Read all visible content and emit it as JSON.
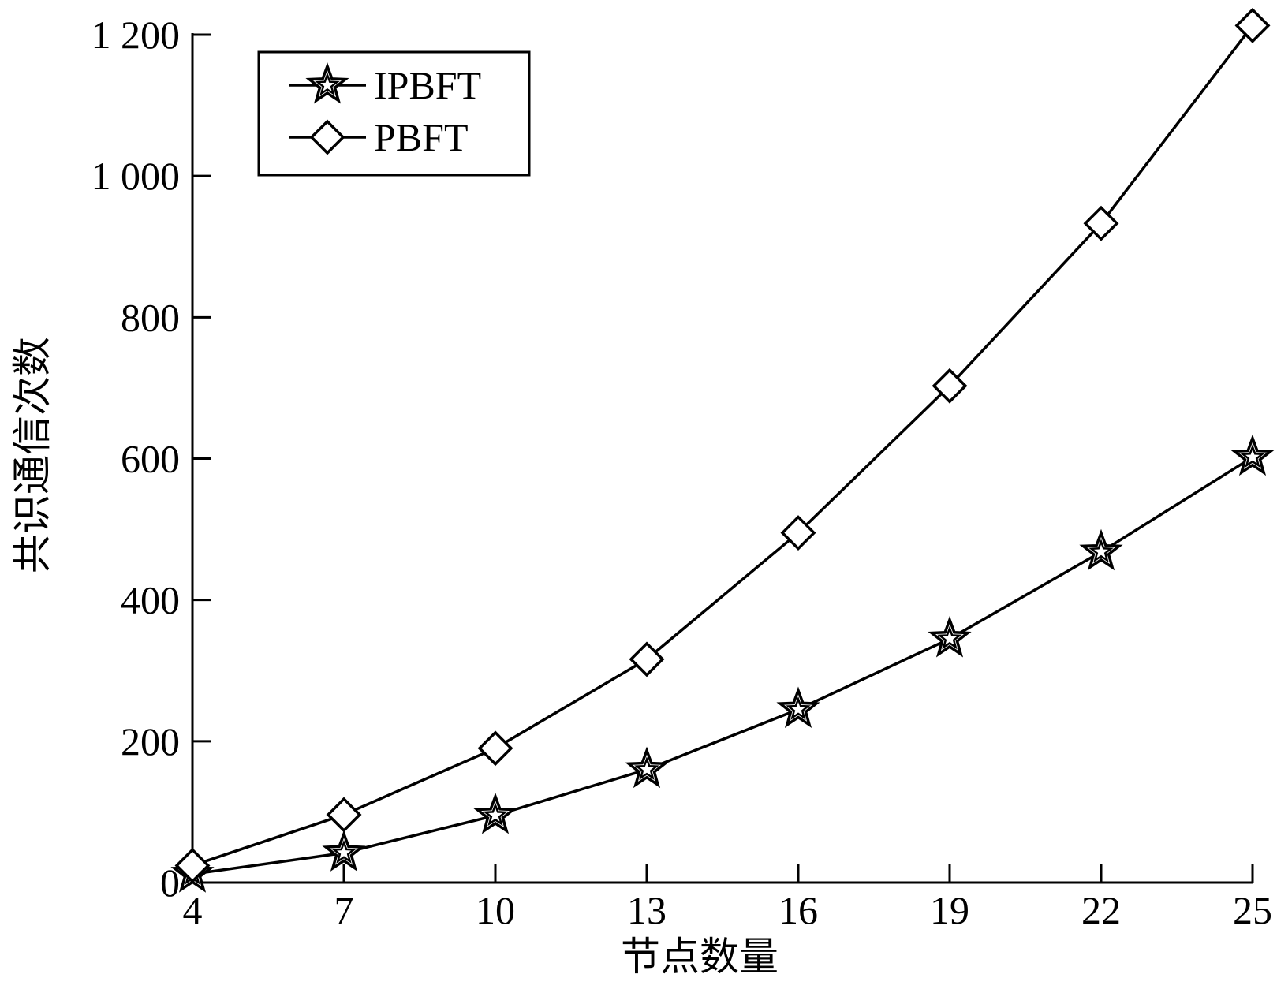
{
  "chart_data": {
    "type": "line",
    "x": [
      4,
      7,
      10,
      13,
      16,
      19,
      22,
      25
    ],
    "series": [
      {
        "name": "IPBFT",
        "marker": "star",
        "values": [
          12,
          42,
          95,
          160,
          245,
          345,
          468,
          602
        ]
      },
      {
        "name": "PBFT",
        "marker": "diamond",
        "values": [
          24,
          96,
          190,
          316,
          495,
          703,
          933,
          1213
        ]
      }
    ],
    "xlabel": "节点数量",
    "ylabel": "共识通信次数",
    "xlim": [
      4,
      25
    ],
    "ylim": [
      0,
      1200
    ],
    "xticks": [
      4,
      7,
      10,
      13,
      16,
      19,
      22,
      25
    ],
    "xtick_labels": [
      "4",
      "7",
      "10",
      "13",
      "16",
      "19",
      "22",
      "25"
    ],
    "yticks": [
      0,
      200,
      400,
      600,
      800,
      1000,
      1200
    ],
    "ytick_labels": [
      "0",
      "200",
      "400",
      "600",
      "800",
      "1 000",
      "1 200"
    ],
    "legend_position": "top-left",
    "grid": false,
    "line_color": "#000000"
  }
}
